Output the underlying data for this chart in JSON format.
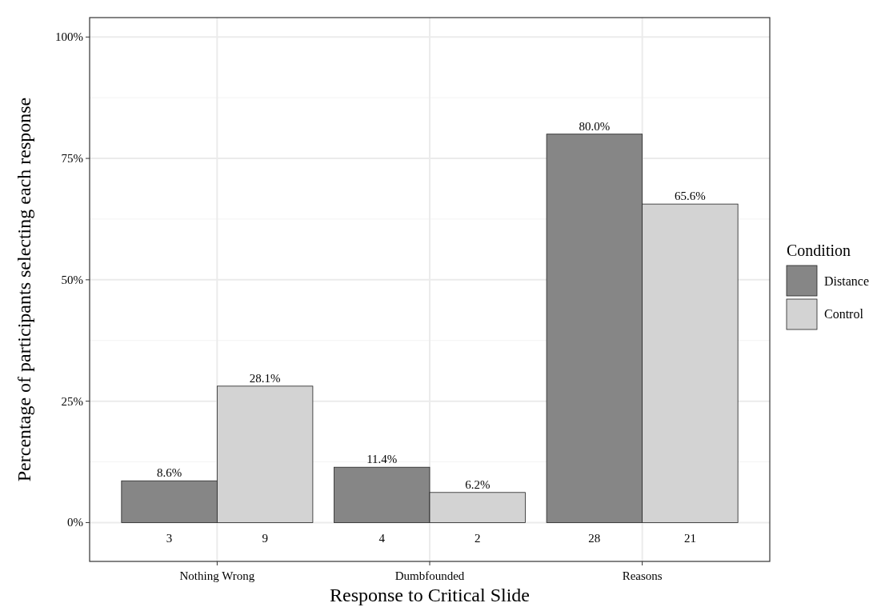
{
  "chart_data": {
    "type": "bar",
    "xlabel": "Response to Critical Slide",
    "ylabel": "Percentage of participants selecting each response",
    "legend_title": "Condition",
    "categories": [
      "Nothing Wrong",
      "Dumbfounded",
      "Reasons"
    ],
    "series": [
      {
        "name": "Distance",
        "color": "#868686",
        "values": [
          8.6,
          11.4,
          80.0
        ],
        "value_labels": [
          "8.6%",
          "11.4%",
          "80.0%"
        ]
      },
      {
        "name": "Control",
        "color": "#d3d3d3",
        "values": [
          28.1,
          6.2,
          65.6
        ],
        "value_labels": [
          "28.1%",
          "6.2%",
          "65.6%"
        ]
      }
    ],
    "annotations": [
      "3",
      "4",
      "28",
      "9",
      "2",
      "21"
    ],
    "ylim": [
      -8,
      104
    ],
    "yticks": [
      {
        "value": 0,
        "label": "0%"
      },
      {
        "value": 25,
        "label": "25%"
      },
      {
        "value": 50,
        "label": "50%"
      },
      {
        "value": 75,
        "label": "75%"
      },
      {
        "value": 100,
        "label": "100%"
      }
    ],
    "grid": true,
    "legend": "right"
  }
}
